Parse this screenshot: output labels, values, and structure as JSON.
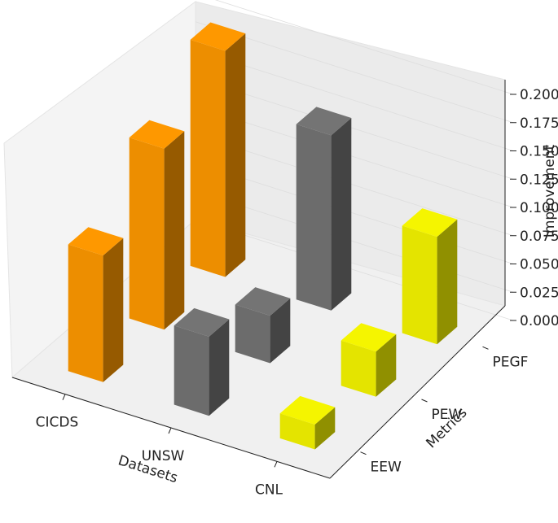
{
  "chart_data": {
    "type": "bar3d",
    "xlabel": "Datasets",
    "ylabel": "Metrics",
    "zlabel": "Improvement",
    "x_categories": [
      "CICDS",
      "UNSW",
      "CNL"
    ],
    "y_categories": [
      "EEW",
      "PEW",
      "PEGF"
    ],
    "zlim": [
      0,
      0.2
    ],
    "z_ticks": [
      "0.000",
      "0.025",
      "0.050",
      "0.075",
      "0.100",
      "0.125",
      "0.150",
      "0.175",
      "0.200"
    ],
    "bars": [
      {
        "x": "CICDS",
        "y": "EEW",
        "value": 0.112
      },
      {
        "x": "CICDS",
        "y": "PEW",
        "value": 0.16
      },
      {
        "x": "CICDS",
        "y": "PEGF",
        "value": 0.2
      },
      {
        "x": "UNSW",
        "y": "EEW",
        "value": 0.07
      },
      {
        "x": "UNSW",
        "y": "PEW",
        "value": 0.042
      },
      {
        "x": "UNSW",
        "y": "PEGF",
        "value": 0.155
      },
      {
        "x": "CNL",
        "y": "EEW",
        "value": 0.022
      },
      {
        "x": "CNL",
        "y": "PEW",
        "value": 0.04
      },
      {
        "x": "CNL",
        "y": "PEGF",
        "value": 0.095
      }
    ],
    "colors": {
      "CICDS": "#f29100",
      "UNSW": "#6e6e6e",
      "CNL": "#e9e900"
    },
    "grid": true
  }
}
